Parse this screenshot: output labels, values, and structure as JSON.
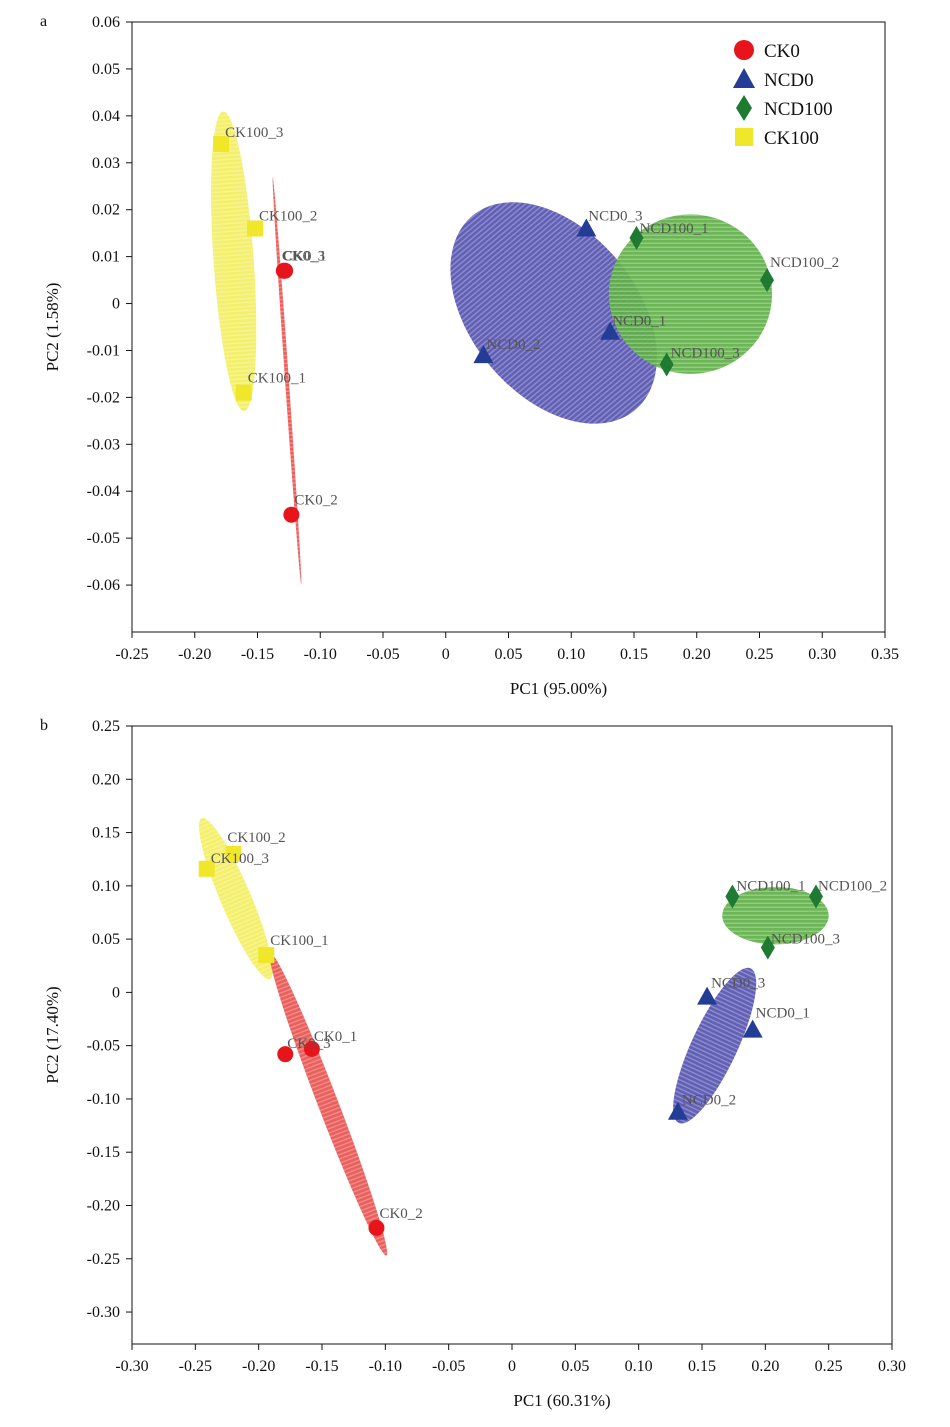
{
  "colors": {
    "CK0": "#e8141b",
    "NCD0": "#233d96",
    "NCD100": "#1f7a32",
    "CK100": "#f0e62a",
    "ellipse_CK0": "#e8524f",
    "ellipse_NCD0": "#5552b0",
    "ellipse_NCD100": "#5fb048",
    "ellipse_CK100": "#f3ef5e"
  },
  "legend": {
    "placement": "top-right",
    "items": [
      {
        "group": "CK0",
        "label": "CK0",
        "marker": "circle"
      },
      {
        "group": "NCD0",
        "label": "NCD0",
        "marker": "triangle"
      },
      {
        "group": "NCD100",
        "label": "NCD100",
        "marker": "diamond"
      },
      {
        "group": "CK100",
        "label": "CK100",
        "marker": "square"
      }
    ]
  },
  "chart_data": [
    {
      "type": "scatter",
      "panel": "a",
      "xlabel": "PC1 (95.00%)",
      "ylabel": "PC2 (1.58%)",
      "xlim": [
        -0.25,
        0.35
      ],
      "ylim": [
        -0.07,
        0.06
      ],
      "xticks": [
        -0.25,
        -0.2,
        -0.15,
        -0.1,
        -0.05,
        0,
        0.05,
        0.1,
        0.15,
        0.2,
        0.25,
        0.3,
        0.35
      ],
      "xtick_labels": [
        "-0.25",
        "-0.20",
        "-0.15",
        "-0.10",
        "-0.05",
        "0",
        "0.05",
        "0.10",
        "0.15",
        "0.20",
        "0.25",
        "0.30",
        "0.35"
      ],
      "yticks": [
        -0.06,
        -0.05,
        -0.04,
        -0.03,
        -0.02,
        -0.01,
        0,
        0.01,
        0.02,
        0.03,
        0.04,
        0.05,
        0.06
      ],
      "ytick_labels": [
        "-0.06",
        "-0.05",
        "-0.04",
        "-0.03",
        "-0.02",
        "-0.01",
        "0",
        "0.01",
        "0.02",
        "0.03",
        "0.04",
        "0.05",
        "0.06"
      ],
      "grid": false,
      "legend": true,
      "series": [
        {
          "name": "CK0",
          "marker": "circle",
          "points": [
            {
              "label": "CK0_1",
              "x": -0.128,
              "y": 0.007
            },
            {
              "label": "CK0_2",
              "x": -0.123,
              "y": -0.045
            },
            {
              "label": "CK0_3",
              "x": -0.129,
              "y": 0.007
            }
          ]
        },
        {
          "name": "NCD0",
          "marker": "triangle",
          "points": [
            {
              "label": "NCD0_1",
              "x": 0.131,
              "y": -0.006
            },
            {
              "label": "NCD0_2",
              "x": 0.03,
              "y": -0.011
            },
            {
              "label": "NCD0_3",
              "x": 0.112,
              "y": 0.016
            }
          ]
        },
        {
          "name": "NCD100",
          "marker": "diamond",
          "points": [
            {
              "label": "NCD100_1",
              "x": 0.152,
              "y": 0.014
            },
            {
              "label": "NCD100_2",
              "x": 0.256,
              "y": 0.005
            },
            {
              "label": "NCD100_3",
              "x": 0.176,
              "y": -0.013
            }
          ]
        },
        {
          "name": "CK100",
          "marker": "square",
          "points": [
            {
              "label": "CK100_1",
              "x": -0.161,
              "y": -0.019
            },
            {
              "label": "CK100_2",
              "x": -0.152,
              "y": 0.016
            },
            {
              "label": "CK100_3",
              "x": -0.179,
              "y": 0.034
            }
          ]
        }
      ],
      "ellipses": [
        {
          "group": "CK100",
          "cx": -0.169,
          "cy": 0.009,
          "rx": 0.016,
          "ry": 0.032,
          "angle": -4
        },
        {
          "group": "CK0",
          "cx": -0.1265,
          "cy": -0.0165,
          "rx": 0.0015,
          "ry": 0.0435,
          "angle": -4
        },
        {
          "group": "NCD0",
          "cx": 0.086,
          "cy": -0.002,
          "rx": 0.066,
          "ry": 0.027,
          "angle": -40
        },
        {
          "group": "NCD100",
          "cx": 0.195,
          "cy": 0.002,
          "rx": 0.065,
          "ry": 0.017,
          "angle": 0
        }
      ]
    },
    {
      "type": "scatter",
      "panel": "b",
      "xlabel": "PC1 (60.31%)",
      "ylabel": "PC2 (17.40%)",
      "xlim": [
        -0.3,
        0.3
      ],
      "ylim": [
        -0.33,
        0.25
      ],
      "xticks": [
        -0.3,
        -0.25,
        -0.2,
        -0.15,
        -0.1,
        -0.05,
        0,
        0.05,
        0.1,
        0.15,
        0.2,
        0.25,
        0.3
      ],
      "xtick_labels": [
        "-0.30",
        "-0.25",
        "-0.20",
        "-0.15",
        "-0.10",
        "-0.05",
        "0",
        "0.05",
        "0.10",
        "0.15",
        "0.20",
        "0.25",
        "0.30"
      ],
      "yticks": [
        -0.3,
        -0.25,
        -0.2,
        -0.15,
        -0.1,
        -0.05,
        0,
        0.05,
        0.1,
        0.15,
        0.2,
        0.25
      ],
      "ytick_labels": [
        "-0.30",
        "-0.25",
        "-0.20",
        "-0.15",
        "-0.10",
        "-0.05",
        "0",
        "0.05",
        "0.10",
        "0.15",
        "0.20",
        "0.25"
      ],
      "grid": false,
      "legend": false,
      "series": [
        {
          "name": "CK0",
          "marker": "circle",
          "points": [
            {
              "label": "CK0_1",
              "x": -0.158,
              "y": -0.053
            },
            {
              "label": "CK0_2",
              "x": -0.107,
              "y": -0.221
            },
            {
              "label": "CK0_3",
              "x": -0.179,
              "y": -0.058
            }
          ]
        },
        {
          "name": "NCD0",
          "marker": "triangle",
          "points": [
            {
              "label": "NCD0_1",
              "x": 0.19,
              "y": -0.035
            },
            {
              "label": "NCD0_2",
              "x": 0.131,
              "y": -0.112
            },
            {
              "label": "NCD0_3",
              "x": 0.154,
              "y": -0.004
            }
          ]
        },
        {
          "name": "NCD100",
          "marker": "diamond",
          "points": [
            {
              "label": "NCD100_1",
              "x": 0.174,
              "y": 0.09
            },
            {
              "label": "NCD100_2",
              "x": 0.24,
              "y": 0.09
            },
            {
              "label": "NCD100_3",
              "x": 0.202,
              "y": 0.042
            }
          ]
        },
        {
          "name": "CK100",
          "marker": "square",
          "points": [
            {
              "label": "CK100_1",
              "x": -0.194,
              "y": 0.035
            },
            {
              "label": "CK100_2",
              "x": -0.22,
              "y": 0.13
            },
            {
              "label": "CK100_3",
              "x": -0.241,
              "y": 0.116
            }
          ]
        }
      ],
      "ellipses": [
        {
          "group": "CK100",
          "cx": -0.218,
          "cy": 0.088,
          "rx": 0.012,
          "ry": 0.082,
          "angle": -23
        },
        {
          "group": "CK0",
          "cx": -0.145,
          "cy": -0.105,
          "rx": 0.008,
          "ry": 0.152,
          "angle": -21
        },
        {
          "group": "NCD0",
          "cx": 0.16,
          "cy": -0.05,
          "rx": 0.018,
          "ry": 0.08,
          "angle": 25
        },
        {
          "group": "NCD100",
          "cx": 0.208,
          "cy": 0.072,
          "rx": 0.042,
          "ry": 0.027,
          "angle": 0
        }
      ]
    }
  ]
}
